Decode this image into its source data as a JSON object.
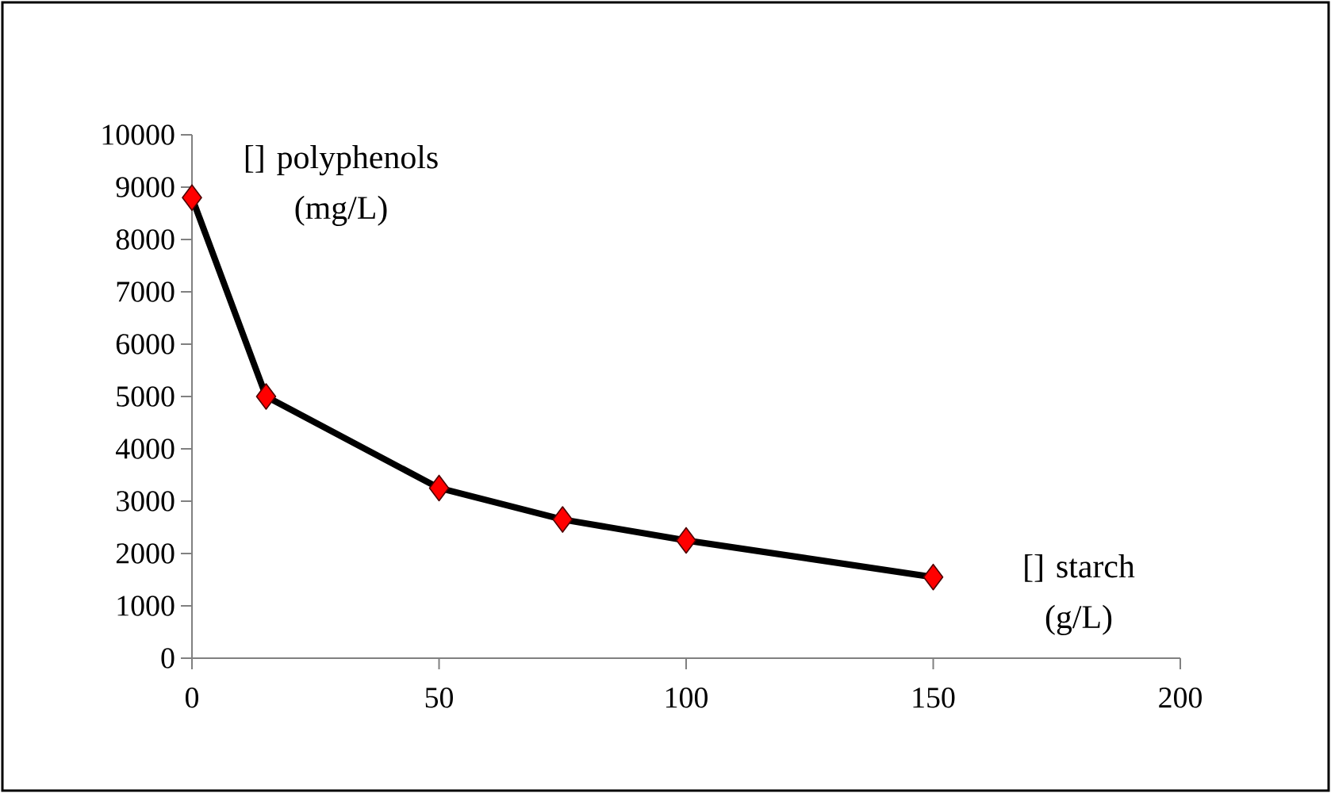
{
  "chart_data": {
    "type": "line",
    "xlabel": "[] starch (g/L)",
    "ylabel": "[] polyphenols (mg/L)",
    "x": [
      0,
      15,
      50,
      75,
      100,
      150
    ],
    "series": [
      {
        "color": "#ff0000",
        "values": [
          8800,
          5000,
          3250,
          2650,
          2250,
          1550
        ]
      }
    ],
    "xlim": [
      0,
      200
    ],
    "xticks": [
      0,
      50,
      100,
      150,
      200
    ],
    "ylim": [
      0,
      10000
    ],
    "yticks": [
      0,
      1000,
      2000,
      3000,
      4000,
      5000,
      6000,
      7000,
      8000,
      9000,
      10000
    ],
    "marker": "diamond",
    "line_style": "solid"
  }
}
